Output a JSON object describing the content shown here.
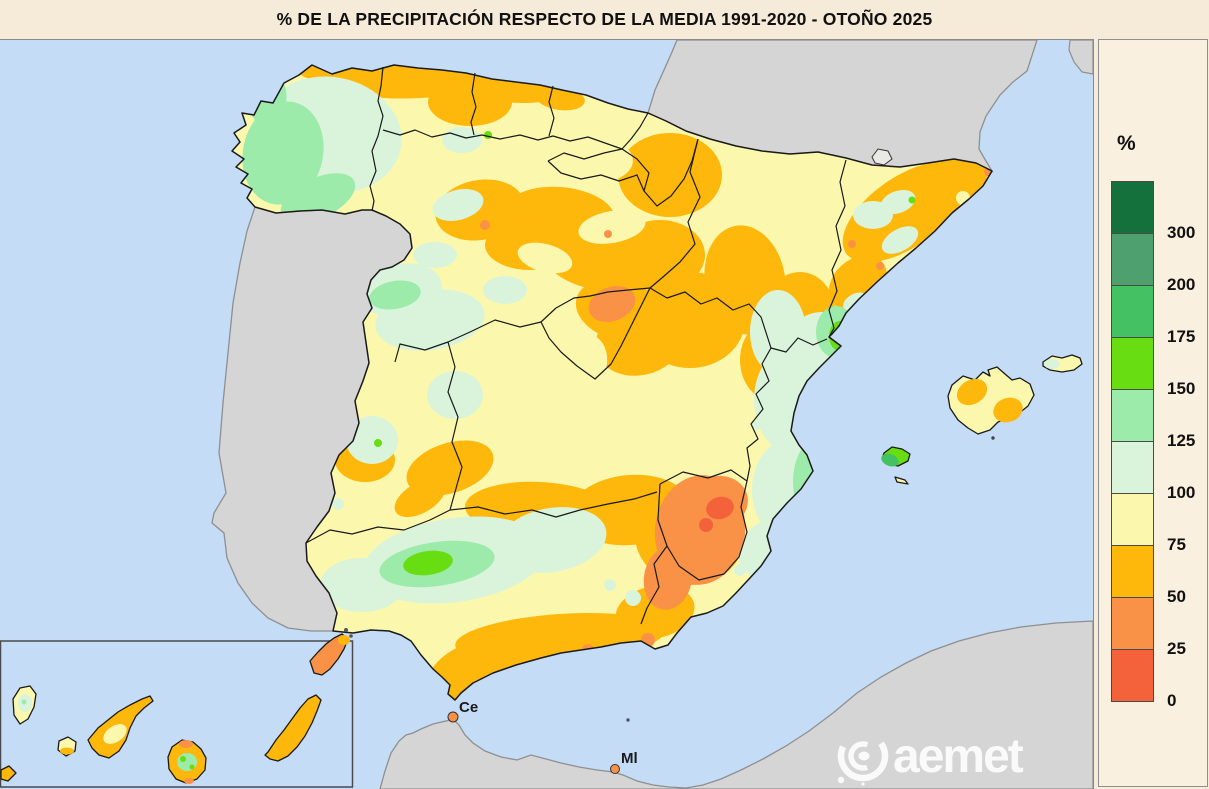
{
  "title": {
    "text": "% DE LA PRECIPITACIÓN RESPECTO DE LA MEDIA 1991-2020 - OTOÑO 2025"
  },
  "legend": {
    "unit_label": "%",
    "bands": [
      {
        "range": ">300",
        "color": "#15713B",
        "tick": "300"
      },
      {
        "range": "200-300",
        "color": "#4EA06F",
        "tick": "200"
      },
      {
        "range": "175-200",
        "color": "#43C163",
        "tick": "175"
      },
      {
        "range": "150-175",
        "color": "#68DE12",
        "tick": "150"
      },
      {
        "range": "125-150",
        "color": "#9DEBAA",
        "tick": "125"
      },
      {
        "range": "100-125",
        "color": "#D9F4DA",
        "tick": "100"
      },
      {
        "range": "75-100",
        "color": "#FBF8AE",
        "tick": "75"
      },
      {
        "range": "50-75",
        "color": "#FEB70B",
        "tick": "50"
      },
      {
        "range": "25-50",
        "color": "#F99247",
        "tick": "25"
      },
      {
        "range": "0-25",
        "color": "#F4623B",
        "tick": "0"
      }
    ]
  },
  "map": {
    "markers": [
      {
        "label": "Ce"
      },
      {
        "label": "Ml"
      }
    ],
    "watermark_text": "aemet",
    "colors": {
      "sea": "#C4DCF6",
      "foreign_land": "#D5D5D5",
      "spain_border": "#1A1A1A"
    }
  },
  "chart_data": {
    "type": "heatmap",
    "title": "% DE LA PRECIPITACIÓN RESPECTO DE LA MEDIA 1991-2020 - OTOÑO 2025",
    "legend_unit": "%",
    "thresholds_percent": [
      0,
      25,
      50,
      75,
      100,
      125,
      150,
      175,
      200,
      300
    ],
    "colors_low_to_high": [
      "#F4623B",
      "#F99247",
      "#FEB70B",
      "#FBF8AE",
      "#D9F4DA",
      "#9DEBAA",
      "#68DE12",
      "#43C163",
      "#4EA06F",
      "#15713B"
    ],
    "notable_regions": [
      {
        "area": "Galicia west coast",
        "percent_band": "125-150"
      },
      {
        "area": "Cantabrian coast (Asturias-Cantabria)",
        "percent_band": "50-75"
      },
      {
        "area": "North-central interior (Castilla, La Rioja, Aragón)",
        "percent_band": "50-75"
      },
      {
        "area": "Madrid area spot",
        "percent_band": "25-50"
      },
      {
        "area": "Catalonia coastal strip",
        "percent_band": "50-75"
      },
      {
        "area": "Ebro delta / Castellón coast",
        "percent_band": "150-300"
      },
      {
        "area": "Valencia-Alicante corridor",
        "percent_band": "100-200"
      },
      {
        "area": "Murcia and inland southeast",
        "percent_band": "0-50"
      },
      {
        "area": "Western Andalusia (Guadalquivir valley)",
        "percent_band": "125-175"
      },
      {
        "area": "Andalusian Mediterranean coast",
        "percent_band": "25-75"
      },
      {
        "area": "Mallorca",
        "percent_band": "50-100"
      },
      {
        "area": "Ibiza",
        "percent_band": "150-200"
      },
      {
        "area": "Canary Islands (Lanzarote driest)",
        "percent_band": "25-100"
      }
    ]
  }
}
